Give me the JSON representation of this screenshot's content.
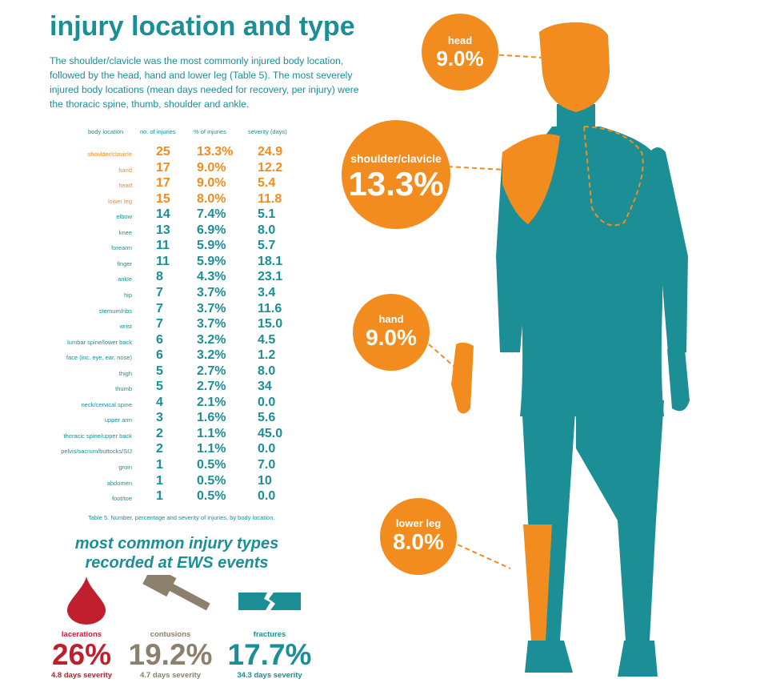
{
  "title": "injury location and type",
  "intro": "The shoulder/clavicle was the most commonly injured body location, followed by the head, hand and lower leg (Table 5).  The most severely injured body locations (mean days needed for recovery, per injury) were the thoracic spine, thumb, shoulder and ankle.",
  "table": {
    "headers": [
      "body location",
      "no. of injuries",
      "% of injuries",
      "severity (days)"
    ],
    "rows": [
      {
        "loc": "shoulder/clavicle",
        "n": "25",
        "pct": "13.3%",
        "sev": "24.9",
        "hl": true
      },
      {
        "loc": "hand",
        "n": "17",
        "pct": "9.0%",
        "sev": "12.2",
        "hl": true
      },
      {
        "loc": "head",
        "n": "17",
        "pct": "9.0%",
        "sev": "5.4",
        "hl": true
      },
      {
        "loc": "lower leg",
        "n": "15",
        "pct": "8.0%",
        "sev": "11.8",
        "hl": true
      },
      {
        "loc": "elbow",
        "n": "14",
        "pct": "7.4%",
        "sev": "5.1"
      },
      {
        "loc": "knee",
        "n": "13",
        "pct": "6.9%",
        "sev": "8.0"
      },
      {
        "loc": "forearm",
        "n": "11",
        "pct": "5.9%",
        "sev": "5.7"
      },
      {
        "loc": "finger",
        "n": "11",
        "pct": "5.9%",
        "sev": "18.1"
      },
      {
        "loc": "ankle",
        "n": "8",
        "pct": "4.3%",
        "sev": "23.1"
      },
      {
        "loc": "hip",
        "n": "7",
        "pct": "3.7%",
        "sev": "3.4"
      },
      {
        "loc": "sternum/ribs",
        "n": "7",
        "pct": "3.7%",
        "sev": "11.6"
      },
      {
        "loc": "wrist",
        "n": "7",
        "pct": "3.7%",
        "sev": "15.0"
      },
      {
        "loc": "lumbar spine/lower back",
        "n": "6",
        "pct": "3.2%",
        "sev": "4.5"
      },
      {
        "loc": "face (inc. eye, ear, nose)",
        "n": "6",
        "pct": "3.2%",
        "sev": "1.2"
      },
      {
        "loc": "thigh",
        "n": "5",
        "pct": "2.7%",
        "sev": "8.0"
      },
      {
        "loc": "thumb",
        "n": "5",
        "pct": "2.7%",
        "sev": "34"
      },
      {
        "loc": "neck/cervical spine",
        "n": "4",
        "pct": "2.1%",
        "sev": "0.0"
      },
      {
        "loc": "upper arm",
        "n": "3",
        "pct": "1.6%",
        "sev": "5.6"
      },
      {
        "loc": "thoracic spine/upper back",
        "n": "2",
        "pct": "1.1%",
        "sev": "45.0"
      },
      {
        "loc": "pelvis/sacrum/buttocks/SIJ",
        "n": "2",
        "pct": "1.1%",
        "sev": "0.0"
      },
      {
        "loc": "groin",
        "n": "1",
        "pct": "0.5%",
        "sev": "7.0"
      },
      {
        "loc": "abdomen",
        "n": "1",
        "pct": "0.5%",
        "sev": "10"
      },
      {
        "loc": "foot/toe",
        "n": "1",
        "pct": "0.5%",
        "sev": "0.0"
      }
    ],
    "caption": "Table 5. Number, percentage and severity of injuries, by body location."
  },
  "types": {
    "heading_line1": "most common injury types",
    "heading_line2": "recorded at EWS events",
    "items": [
      {
        "label": "lacerations",
        "pct": "26%",
        "severity": "4.8 days severity",
        "color": "#c0202e",
        "icon": "blood-drop-icon"
      },
      {
        "label": "contusions",
        "pct": "19.2%",
        "severity": "4.7 days severity",
        "color": "#8c7f6c",
        "icon": "hammer-icon"
      },
      {
        "label": "fractures",
        "pct": "17.7%",
        "severity": "34.3 days severity",
        "color": "#1b8f95",
        "icon": "broken-bone-icon"
      }
    ]
  },
  "bubbles": {
    "head": {
      "label": "head",
      "pct": "9.0%"
    },
    "shoulder": {
      "label": "shoulder/clavicle",
      "pct": "13.3%"
    },
    "hand": {
      "label": "hand",
      "pct": "9.0%"
    },
    "lowerleg": {
      "label": "lower leg",
      "pct": "8.0%"
    }
  },
  "colors": {
    "teal": "#1b8f95",
    "orange": "#f28c1e"
  }
}
